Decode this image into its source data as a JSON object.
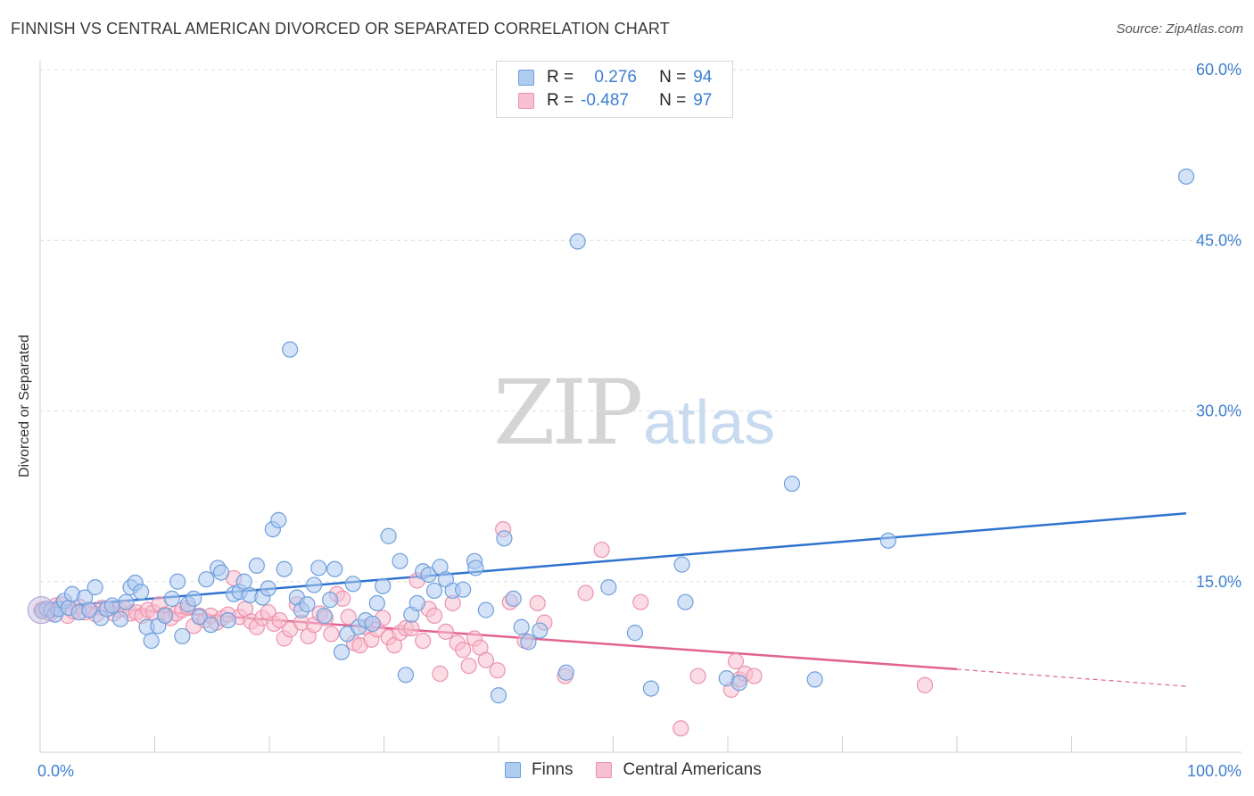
{
  "header": {
    "title": "FINNISH VS CENTRAL AMERICAN DIVORCED OR SEPARATED CORRELATION CHART",
    "source": "Source: ZipAtlas.com"
  },
  "watermark": {
    "zip": "ZIP",
    "atlas": "atlas"
  },
  "legend": {
    "rows": [
      {
        "r_label": "R =",
        "r_value": " 0.276",
        "n_label": "N =",
        "n_value": "94"
      },
      {
        "r_label": "R =",
        "r_value": "-0.487",
        "n_label": "N =",
        "n_value": "97"
      }
    ]
  },
  "bottom_legend": {
    "finns": "Finns",
    "central": "Central Americans"
  },
  "colors": {
    "finns_fill": "#aecbf0",
    "finns_stroke": "#6f9fdb",
    "finns_line": "#2f73cf",
    "central_fill": "#f7bfd0",
    "central_stroke": "#ec92ae",
    "central_line": "#e2628f",
    "grid": "#dedede",
    "axis_text": "#3d7fd1"
  },
  "chart_data": {
    "type": "scatter",
    "title": "FINNISH VS CENTRAL AMERICAN DIVORCED OR SEPARATED CORRELATION CHART",
    "xlabel": "",
    "ylabel": "Divorced or Separated",
    "xlim": [
      0,
      100
    ],
    "ylim": [
      0,
      60
    ],
    "x_tick_labels": [
      "0.0%",
      "100.0%"
    ],
    "y_ticks": [
      15,
      30,
      45,
      60
    ],
    "y_tick_labels": [
      "15.0%",
      "30.0%",
      "45.0%",
      "60.0%"
    ],
    "grid": "horizontal dashed",
    "series": [
      {
        "name": "Finns",
        "r": 0.276,
        "n": 94,
        "trend": {
          "x": [
            0,
            100
          ],
          "y": [
            12.7,
            21.0
          ]
        },
        "points": [
          [
            0.2,
            12.4
          ],
          [
            0.6,
            12.6
          ],
          [
            1.0,
            12.5
          ],
          [
            1.3,
            12.1
          ],
          [
            1.6,
            12.6
          ],
          [
            2.1,
            13.3
          ],
          [
            2.5,
            12.7
          ],
          [
            2.8,
            13.9
          ],
          [
            3.4,
            12.3
          ],
          [
            3.9,
            13.6
          ],
          [
            4.3,
            12.5
          ],
          [
            4.8,
            14.5
          ],
          [
            5.3,
            11.8
          ],
          [
            5.8,
            12.6
          ],
          [
            6.3,
            12.9
          ],
          [
            7.0,
            11.7
          ],
          [
            7.5,
            13.2
          ],
          [
            7.9,
            14.5
          ],
          [
            8.3,
            14.9
          ],
          [
            8.8,
            14.1
          ],
          [
            9.3,
            11.0
          ],
          [
            9.7,
            9.8
          ],
          [
            10.3,
            11.1
          ],
          [
            10.9,
            12.0
          ],
          [
            11.5,
            13.5
          ],
          [
            12.0,
            15.0
          ],
          [
            12.4,
            10.2
          ],
          [
            12.9,
            13.0
          ],
          [
            13.4,
            13.5
          ],
          [
            13.9,
            11.9
          ],
          [
            14.5,
            15.2
          ],
          [
            14.9,
            11.2
          ],
          [
            15.5,
            16.2
          ],
          [
            15.8,
            15.8
          ],
          [
            16.4,
            11.6
          ],
          [
            16.9,
            13.9
          ],
          [
            17.4,
            14.1
          ],
          [
            17.8,
            15.0
          ],
          [
            18.3,
            13.8
          ],
          [
            18.9,
            16.4
          ],
          [
            19.4,
            13.6
          ],
          [
            19.9,
            14.4
          ],
          [
            20.3,
            19.6
          ],
          [
            20.8,
            20.4
          ],
          [
            21.3,
            16.1
          ],
          [
            21.8,
            35.4
          ],
          [
            22.4,
            13.6
          ],
          [
            22.8,
            12.5
          ],
          [
            23.3,
            13.0
          ],
          [
            23.9,
            14.7
          ],
          [
            24.3,
            16.2
          ],
          [
            24.8,
            12.0
          ],
          [
            25.3,
            13.4
          ],
          [
            25.7,
            16.1
          ],
          [
            26.3,
            8.8
          ],
          [
            26.8,
            10.4
          ],
          [
            27.3,
            14.8
          ],
          [
            27.8,
            11.0
          ],
          [
            28.4,
            11.6
          ],
          [
            29.0,
            11.3
          ],
          [
            29.4,
            13.1
          ],
          [
            29.9,
            14.6
          ],
          [
            30.4,
            19.0
          ],
          [
            31.4,
            16.8
          ],
          [
            31.9,
            6.8
          ],
          [
            32.4,
            12.1
          ],
          [
            32.9,
            13.1
          ],
          [
            33.4,
            15.9
          ],
          [
            33.9,
            15.6
          ],
          [
            34.4,
            14.2
          ],
          [
            34.9,
            16.3
          ],
          [
            35.4,
            15.2
          ],
          [
            36.0,
            14.2
          ],
          [
            36.9,
            14.3
          ],
          [
            37.9,
            16.8
          ],
          [
            38.0,
            16.2
          ],
          [
            38.9,
            12.5
          ],
          [
            40.5,
            18.8
          ],
          [
            40.0,
            5.0
          ],
          [
            41.3,
            13.5
          ],
          [
            42.0,
            11.0
          ],
          [
            42.6,
            9.7
          ],
          [
            43.6,
            10.7
          ],
          [
            45.9,
            7.0
          ],
          [
            46.9,
            44.9
          ],
          [
            49.6,
            14.5
          ],
          [
            51.9,
            10.5
          ],
          [
            53.3,
            5.6
          ],
          [
            56.0,
            16.5
          ],
          [
            56.3,
            13.2
          ],
          [
            59.9,
            6.5
          ],
          [
            61.0,
            6.1
          ],
          [
            65.6,
            23.6
          ],
          [
            67.6,
            6.4
          ],
          [
            74.0,
            18.6
          ],
          [
            100.0,
            50.6
          ]
        ]
      },
      {
        "name": "Central Americans",
        "r": -0.487,
        "n": 97,
        "trend": {
          "x": [
            0,
            80,
            100
          ],
          "y": [
            13.1,
            7.3,
            5.8
          ],
          "solid_to": 80
        },
        "points": [
          [
            0.4,
            12.6
          ],
          [
            0.9,
            12.2
          ],
          [
            1.4,
            12.9
          ],
          [
            1.9,
            13.0
          ],
          [
            2.4,
            12.0
          ],
          [
            2.9,
            12.4
          ],
          [
            3.4,
            12.8
          ],
          [
            3.9,
            12.3
          ],
          [
            4.4,
            12.5
          ],
          [
            4.9,
            12.1
          ],
          [
            5.4,
            12.7
          ],
          [
            5.9,
            12.6
          ],
          [
            6.4,
            12.2
          ],
          [
            6.9,
            12.5
          ],
          [
            7.4,
            12.6
          ],
          [
            7.9,
            12.2
          ],
          [
            8.4,
            12.3
          ],
          [
            8.9,
            12.0
          ],
          [
            9.4,
            12.5
          ],
          [
            9.9,
            12.3
          ],
          [
            10.4,
            13.0
          ],
          [
            10.9,
            12.1
          ],
          [
            11.4,
            11.8
          ],
          [
            11.9,
            12.2
          ],
          [
            12.4,
            12.5
          ],
          [
            12.9,
            12.7
          ],
          [
            13.4,
            11.1
          ],
          [
            13.9,
            12.0
          ],
          [
            14.4,
            11.6
          ],
          [
            14.9,
            12.0
          ],
          [
            15.4,
            11.4
          ],
          [
            15.9,
            11.8
          ],
          [
            16.4,
            12.1
          ],
          [
            16.9,
            15.3
          ],
          [
            17.4,
            11.9
          ],
          [
            17.9,
            12.6
          ],
          [
            18.4,
            11.5
          ],
          [
            18.9,
            11.0
          ],
          [
            19.4,
            11.8
          ],
          [
            19.9,
            12.3
          ],
          [
            20.4,
            11.3
          ],
          [
            20.9,
            11.6
          ],
          [
            21.3,
            10.0
          ],
          [
            21.8,
            10.8
          ],
          [
            22.4,
            13.0
          ],
          [
            22.8,
            11.4
          ],
          [
            23.4,
            10.2
          ],
          [
            23.9,
            11.2
          ],
          [
            24.4,
            12.2
          ],
          [
            24.9,
            11.8
          ],
          [
            25.4,
            10.4
          ],
          [
            25.9,
            13.9
          ],
          [
            26.4,
            13.5
          ],
          [
            26.9,
            11.9
          ],
          [
            27.4,
            9.6
          ],
          [
            27.9,
            9.4
          ],
          [
            28.4,
            11.0
          ],
          [
            28.9,
            9.9
          ],
          [
            29.4,
            10.8
          ],
          [
            29.9,
            11.8
          ],
          [
            30.4,
            10.1
          ],
          [
            30.9,
            9.4
          ],
          [
            31.4,
            10.5
          ],
          [
            31.9,
            10.9
          ],
          [
            32.4,
            10.9
          ],
          [
            32.9,
            15.1
          ],
          [
            33.4,
            9.8
          ],
          [
            33.9,
            12.6
          ],
          [
            34.4,
            12.0
          ],
          [
            34.9,
            6.9
          ],
          [
            35.4,
            10.6
          ],
          [
            36.0,
            13.1
          ],
          [
            36.4,
            9.6
          ],
          [
            36.9,
            9.0
          ],
          [
            37.4,
            7.6
          ],
          [
            37.9,
            10.0
          ],
          [
            38.4,
            9.2
          ],
          [
            38.9,
            8.1
          ],
          [
            39.9,
            7.2
          ],
          [
            40.4,
            19.6
          ],
          [
            41.0,
            13.2
          ],
          [
            42.3,
            9.8
          ],
          [
            43.4,
            13.1
          ],
          [
            44.0,
            11.4
          ],
          [
            45.8,
            6.7
          ],
          [
            47.6,
            14.0
          ],
          [
            49.0,
            17.8
          ],
          [
            52.4,
            13.2
          ],
          [
            55.9,
            2.1
          ],
          [
            57.4,
            6.7
          ],
          [
            60.3,
            5.5
          ],
          [
            60.7,
            8.0
          ],
          [
            61.0,
            6.4
          ],
          [
            61.5,
            6.9
          ],
          [
            62.3,
            6.7
          ],
          [
            77.2,
            5.9
          ],
          [
            0.1,
            12.5
          ]
        ]
      }
    ]
  }
}
